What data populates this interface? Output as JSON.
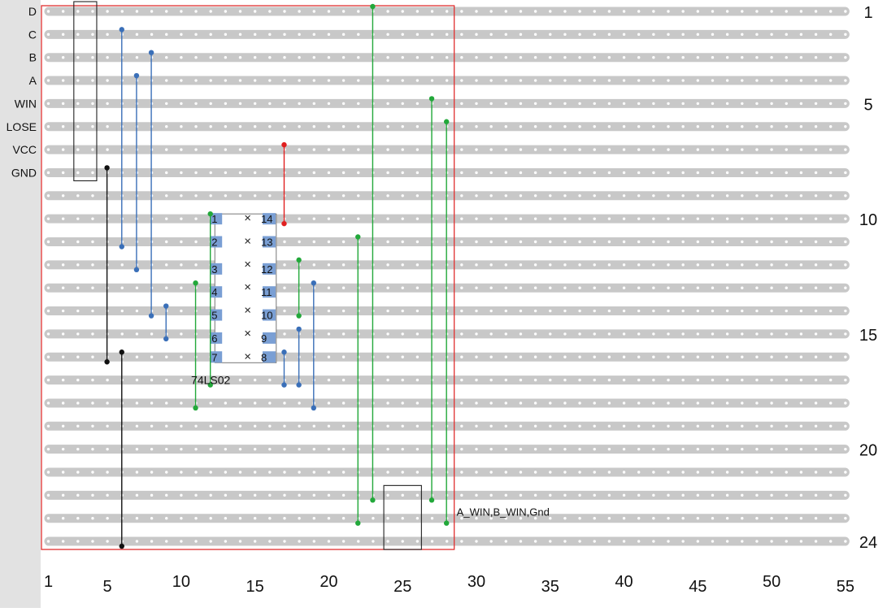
{
  "strip_labels": [
    {
      "row": 1,
      "text": "D"
    },
    {
      "row": 2,
      "text": "C"
    },
    {
      "row": 3,
      "text": "B"
    },
    {
      "row": 4,
      "text": "A"
    },
    {
      "row": 5,
      "text": "WIN"
    },
    {
      "row": 6,
      "text": "LOSE"
    },
    {
      "row": 7,
      "text": "VCC"
    },
    {
      "row": 8,
      "text": "GND"
    }
  ],
  "row_numbers": [
    {
      "row": 1,
      "text": "1"
    },
    {
      "row": 5,
      "text": "5"
    },
    {
      "row": 10,
      "text": "10"
    },
    {
      "row": 15,
      "text": "15"
    },
    {
      "row": 20,
      "text": "20"
    },
    {
      "row": 24,
      "text": "24"
    }
  ],
  "column_numbers": [
    {
      "col": 1,
      "text": "1"
    },
    {
      "col": 5,
      "text": "5"
    },
    {
      "col": 10,
      "text": "10"
    },
    {
      "col": 15,
      "text": "15"
    },
    {
      "col": 20,
      "text": "20"
    },
    {
      "col": 25,
      "text": "25"
    },
    {
      "col": 30,
      "text": "30"
    },
    {
      "col": 35,
      "text": "35"
    },
    {
      "col": 40,
      "text": "40"
    },
    {
      "col": 45,
      "text": "45"
    },
    {
      "col": 50,
      "text": "50"
    },
    {
      "col": 55,
      "text": "55"
    }
  ],
  "board": {
    "rows": 24,
    "columns": 55
  },
  "chip": {
    "label": "74LS02",
    "left_pins": [
      "1",
      "2",
      "3",
      "4",
      "5",
      "6",
      "7"
    ],
    "right_pins": [
      "14",
      "13",
      "12",
      "11",
      "10",
      "9",
      "8"
    ],
    "left_col": 12,
    "right_col": 17,
    "top_row": 10,
    "unused_holes_marker": "×"
  },
  "colors": {
    "strip": "#c8c8c8",
    "hole": "#ffffff",
    "outline": "#e03030",
    "blue_wire": "#3a6fb8",
    "green_wire": "#22a83a",
    "red_wire": "#e02020",
    "black_wire": "#111111",
    "pin_fill": "#7a9fd4",
    "left_panel": "#e2e2e2"
  },
  "wires": [
    {
      "color": "blue",
      "col": 6,
      "from_row": 2,
      "to_row": 11
    },
    {
      "color": "blue",
      "col": 7,
      "from_row": 4,
      "to_row": 12
    },
    {
      "color": "blue",
      "col": 8,
      "from_row": 3,
      "to_row": 14
    },
    {
      "color": "blue",
      "col": 9,
      "from_row": 14,
      "to_row": 15
    },
    {
      "color": "black",
      "col": 5,
      "from_row": 8,
      "to_row": 16
    },
    {
      "color": "black",
      "col": 6,
      "from_row": 16,
      "to_row": 24
    },
    {
      "color": "green",
      "col": 11,
      "from_row": 13,
      "to_row": 18
    },
    {
      "color": "green",
      "col": 12,
      "from_row": 10,
      "to_row": 17
    },
    {
      "color": "red",
      "col": 17,
      "from_row": 7,
      "to_row": 10
    },
    {
      "color": "blue",
      "col": 17,
      "from_row": 16,
      "to_row": 17
    },
    {
      "color": "green",
      "col": 18,
      "from_row": 12,
      "to_row": 14
    },
    {
      "color": "blue",
      "col": 18,
      "from_row": 15,
      "to_row": 17
    },
    {
      "color": "blue",
      "col": 19,
      "from_row": 13,
      "to_row": 18
    },
    {
      "color": "green",
      "col": 22,
      "from_row": 11,
      "to_row": 23
    },
    {
      "color": "green",
      "col": 23,
      "from_row": 1,
      "to_row": 22
    },
    {
      "color": "green",
      "col": 27,
      "from_row": 5,
      "to_row": 22
    },
    {
      "color": "green",
      "col": 28,
      "from_row": 6,
      "to_row": 23
    }
  ],
  "connector_boxes": [
    {
      "name": "input-header",
      "col_from": 3,
      "col_to": 4,
      "row_from": 1,
      "row_to": 8
    },
    {
      "name": "output-header",
      "col_from": 24,
      "col_to": 26,
      "row_from": 22,
      "row_to": 24
    }
  ],
  "output_label": "A_WIN,B_WIN,Gnd"
}
